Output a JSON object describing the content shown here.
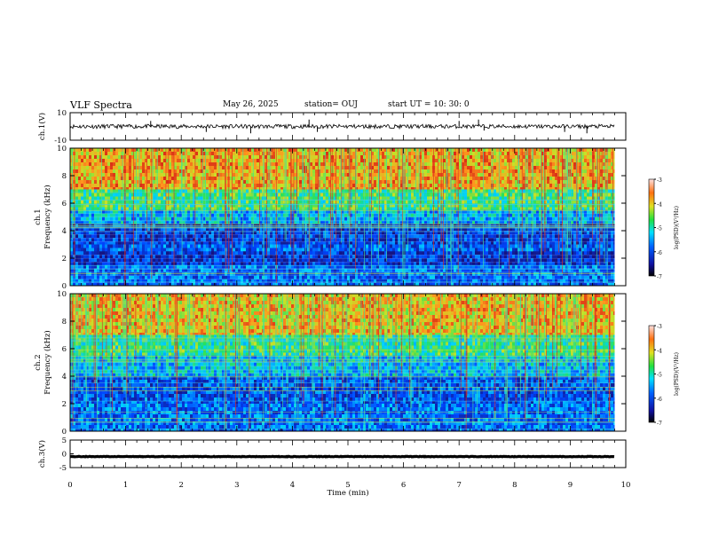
{
  "header": {
    "title": "VLF Spectra",
    "date": "May 26, 2025",
    "station": "station= OUJ",
    "start": "start  UT  =    10: 30: 0"
  },
  "chart_data": [
    {
      "type": "line",
      "panel": "ch1-waveform",
      "ylabel": "ch.1(V)",
      "yticks": [
        "10",
        "-10"
      ],
      "ylim": [
        -10,
        10
      ],
      "xlim": [
        0,
        10
      ],
      "series": [
        {
          "baseline": 0,
          "noise_amplitude": 1.5,
          "spikes": [
            [
              1.45,
              4
            ],
            [
              2.45,
              -4
            ],
            [
              3.25,
              -5
            ],
            [
              4.3,
              5
            ],
            [
              4.45,
              -4
            ],
            [
              7.0,
              4
            ],
            [
              7.35,
              5
            ],
            [
              7.45,
              -3
            ],
            [
              8.9,
              -4
            ],
            [
              9.3,
              -5
            ]
          ]
        }
      ]
    },
    {
      "type": "heatmap",
      "panel": "ch1-spectrogram",
      "ylabel": "Frequency  (kHz)",
      "channel_label": "ch.1",
      "yticks": [
        "0",
        "2",
        "4",
        "6",
        "8",
        "10"
      ],
      "ylim": [
        0,
        10
      ],
      "xlim": [
        0,
        9.8
      ],
      "bands": [
        {
          "f_from": 10.0,
          "f_to": 7.0,
          "logpsd": -3.8
        },
        {
          "f_from": 7.0,
          "f_to": 5.5,
          "logpsd": -4.8
        },
        {
          "f_from": 5.5,
          "f_to": 4.5,
          "logpsd": -5.6
        },
        {
          "f_from": 4.5,
          "f_to": 3.0,
          "logpsd": -6.4
        },
        {
          "f_from": 3.0,
          "f_to": 2.5,
          "logpsd": -6.1
        },
        {
          "f_from": 2.5,
          "f_to": 1.5,
          "logpsd": -6.5
        },
        {
          "f_from": 1.5,
          "f_to": 0.0,
          "logpsd": -6.0
        }
      ],
      "colorbar": {
        "label": "log(PSD)(V²/Hz)",
        "ticks": [
          "-3",
          "-4",
          "-5",
          "-6",
          "-7"
        ],
        "range": [
          -7,
          -3
        ]
      }
    },
    {
      "type": "heatmap",
      "panel": "ch2-spectrogram",
      "ylabel": "Frequency  (kHz)",
      "channel_label": "ch.2",
      "yticks": [
        "0",
        "2",
        "4",
        "6",
        "8",
        "10"
      ],
      "ylim": [
        0,
        10
      ],
      "xlim": [
        0,
        9.8
      ],
      "bands": [
        {
          "f_from": 10.0,
          "f_to": 7.0,
          "logpsd": -3.9
        },
        {
          "f_from": 7.0,
          "f_to": 5.5,
          "logpsd": -4.9
        },
        {
          "f_from": 5.5,
          "f_to": 4.0,
          "logpsd": -5.5
        },
        {
          "f_from": 4.0,
          "f_to": 2.0,
          "logpsd": -6.2
        },
        {
          "f_from": 2.0,
          "f_to": 0.0,
          "logpsd": -6.0
        }
      ],
      "colorbar": {
        "label": "log(PSD)(V²/Hz)",
        "ticks": [
          "-3",
          "-4",
          "-5",
          "-6",
          "-7"
        ],
        "range": [
          -7,
          -3
        ]
      }
    },
    {
      "type": "line",
      "panel": "ch3-waveform",
      "ylabel": "ch.3(V)",
      "yticks": [
        "5",
        "0",
        "-5"
      ],
      "ylim": [
        -5,
        5
      ],
      "xlim": [
        0,
        10
      ],
      "xlabel": "Time  (min)",
      "xticks": [
        "0",
        "1",
        "2",
        "3",
        "4",
        "5",
        "6",
        "7",
        "8",
        "9",
        "10"
      ],
      "series": [
        {
          "baseline": -1.0,
          "noise_amplitude": 0.1
        }
      ]
    }
  ],
  "colors": {
    "axes": "#000000",
    "colormap": [
      "#1b1f8f",
      "#0050ff",
      "#00d8ff",
      "#30e080",
      "#d0e030",
      "#ff9020",
      "#d01810"
    ]
  }
}
